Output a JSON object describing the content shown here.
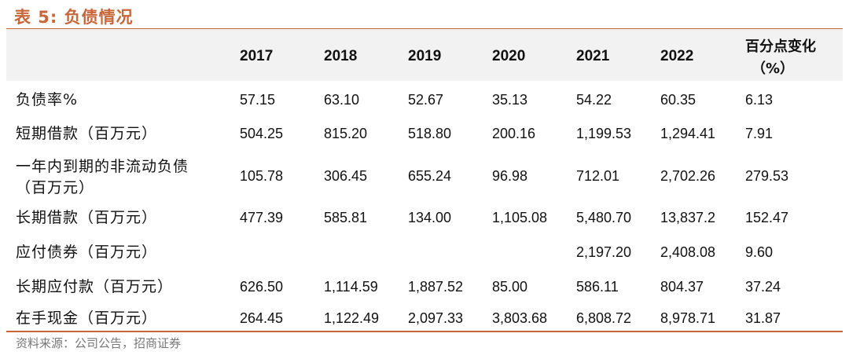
{
  "title": "表 5:  负债情况",
  "columns": [
    "2017",
    "2018",
    "2019",
    "2020",
    "2021",
    "2022"
  ],
  "change_header": [
    "百分点变化",
    "（%）"
  ],
  "rows": [
    {
      "label": [
        "负债率%"
      ],
      "values": [
        "57.15",
        "63.10",
        "52.67",
        "35.13",
        "54.22",
        "60.35",
        "6.13"
      ]
    },
    {
      "label": [
        "短期借款（百万元）"
      ],
      "values": [
        "504.25",
        "815.20",
        "518.80",
        "200.16",
        "1,199.53",
        "1,294.41",
        "7.91"
      ]
    },
    {
      "label": [
        "一年内到期的非流动负债",
        "（百万元）"
      ],
      "values": [
        "105.78",
        "306.45",
        "655.24",
        "96.98",
        "712.01",
        "2,702.26",
        "279.53"
      ]
    },
    {
      "label": [
        "长期借款（百万元）"
      ],
      "values": [
        "477.39",
        "585.81",
        "134.00",
        "1,105.08",
        "5,480.70",
        "13,837.2",
        "152.47"
      ]
    },
    {
      "label": [
        "应付债券（百万元）"
      ],
      "values": [
        "",
        "",
        "",
        "",
        "2,197.20",
        "2,408.08",
        "9.60"
      ]
    },
    {
      "label": [
        "长期应付款（百万元）"
      ],
      "values": [
        "626.50",
        "1,114.59",
        "1,887.52",
        "85.00",
        "586.11",
        "804.37",
        "37.24"
      ]
    },
    {
      "label": [
        "在手现金（百万元）"
      ],
      "values": [
        "264.45",
        "1,122.49",
        "2,097.33",
        "3,803.68",
        "6,808.72",
        "8,978.71",
        "31.87"
      ]
    }
  ],
  "source": "资料来源：公司公告，招商证券",
  "colors": {
    "accent": "#c8663a",
    "header_bg": "#f2f2f2",
    "text": "#111111"
  }
}
